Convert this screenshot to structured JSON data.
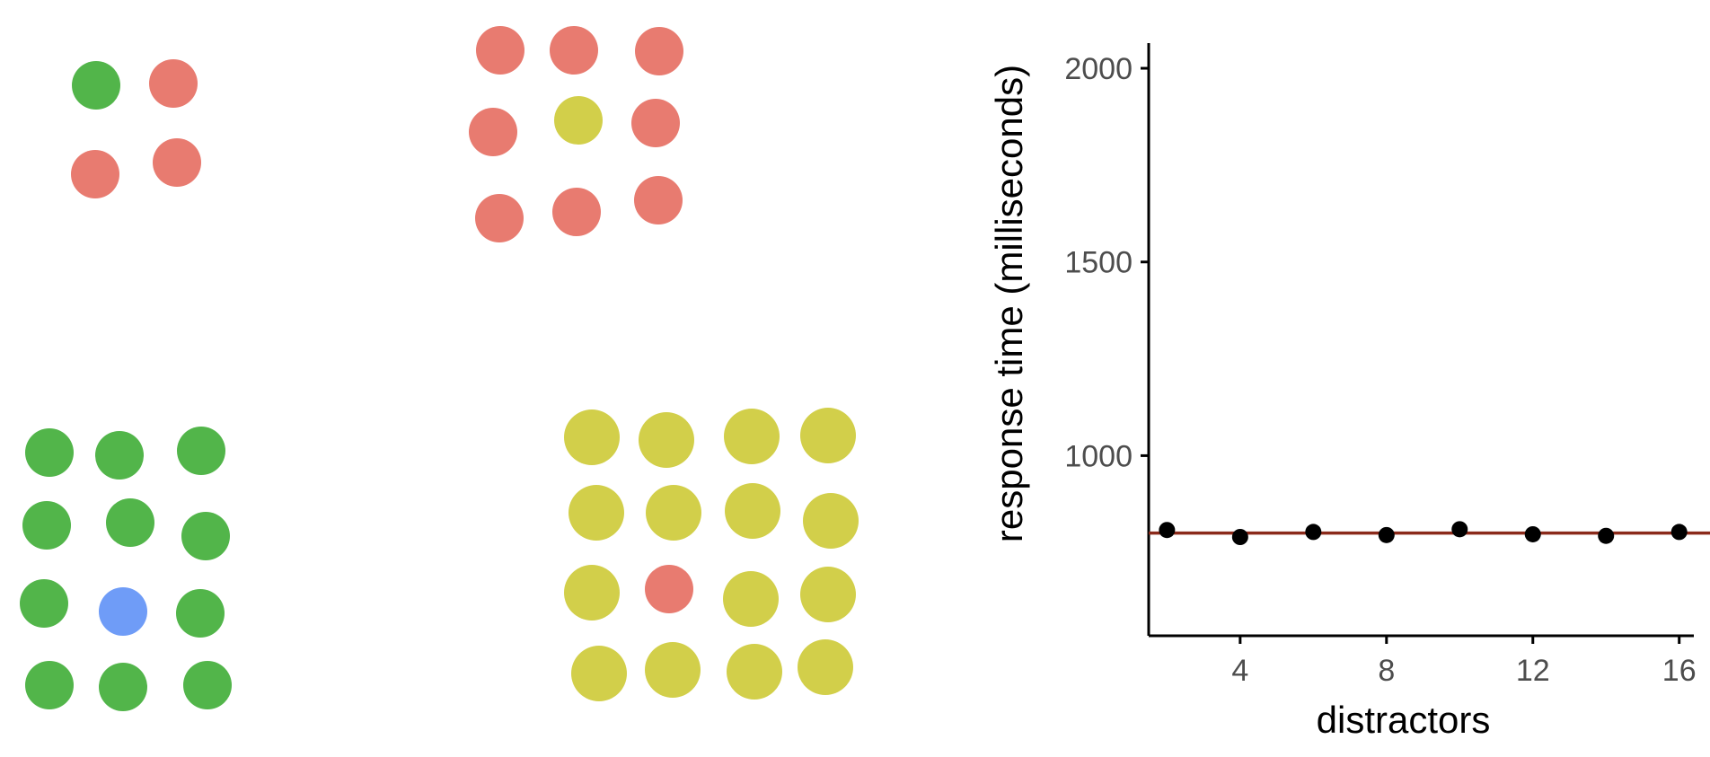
{
  "colors": {
    "red": "#e87b70",
    "green": "#52b54a",
    "yellow": "#d2cf4a",
    "blue": "#6f9cf7",
    "point": "#000000",
    "line": "#8b2a1a",
    "axis": "#000000"
  },
  "displays": [
    {
      "name": "display-top-left",
      "dots": [
        {
          "color": "green"
        },
        {
          "color": "red"
        },
        {
          "color": "red"
        },
        {
          "color": "red"
        }
      ]
    },
    {
      "name": "display-top-middle",
      "dots": [
        {
          "color": "red"
        },
        {
          "color": "red"
        },
        {
          "color": "red"
        },
        {
          "color": "red"
        },
        {
          "color": "yellow"
        },
        {
          "color": "red"
        },
        {
          "color": "red"
        },
        {
          "color": "red"
        },
        {
          "color": "red"
        }
      ]
    },
    {
      "name": "display-bottom-left",
      "dots": [
        {
          "color": "green"
        },
        {
          "color": "green"
        },
        {
          "color": "green"
        },
        {
          "color": "green"
        },
        {
          "color": "green"
        },
        {
          "color": "green"
        },
        {
          "color": "green"
        },
        {
          "color": "blue"
        },
        {
          "color": "green"
        },
        {
          "color": "green"
        },
        {
          "color": "green"
        },
        {
          "color": "green"
        }
      ]
    },
    {
      "name": "display-bottom-middle",
      "dots": [
        {
          "color": "yellow"
        },
        {
          "color": "yellow"
        },
        {
          "color": "yellow"
        },
        {
          "color": "yellow"
        },
        {
          "color": "yellow"
        },
        {
          "color": "yellow"
        },
        {
          "color": "yellow"
        },
        {
          "color": "yellow"
        },
        {
          "color": "yellow"
        },
        {
          "color": "red"
        },
        {
          "color": "yellow"
        },
        {
          "color": "yellow"
        },
        {
          "color": "yellow"
        },
        {
          "color": "yellow"
        },
        {
          "color": "yellow"
        },
        {
          "color": "yellow"
        }
      ]
    }
  ],
  "chart_data": {
    "type": "scatter",
    "title": "",
    "xlabel": "distractors",
    "ylabel": "response time (milliseconds)",
    "x": [
      2,
      4,
      6,
      8,
      10,
      12,
      14,
      16
    ],
    "y": [
      808,
      790,
      803,
      795,
      810,
      797,
      793,
      803
    ],
    "fit_line": {
      "y": 800
    },
    "xlim": [
      1.5,
      16.4
    ],
    "ylim": [
      535,
      2065
    ],
    "xticks": [
      4,
      8,
      12,
      16
    ],
    "yticks": [
      1000,
      1500,
      2000
    ],
    "xtick_labels": [
      "4",
      "8",
      "12",
      "16"
    ],
    "ytick_labels": [
      "1000",
      "1500",
      "2000"
    ],
    "grid": false,
    "legend": "none"
  }
}
